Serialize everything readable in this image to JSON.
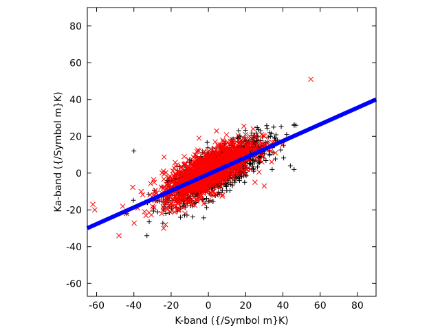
{
  "chart_data": {
    "type": "scatter",
    "title": "",
    "xlabel": "K-band ({/Symbol m}K)",
    "ylabel": "Ka-band ({/Symbol m}K)",
    "xlim": [
      -65,
      90
    ],
    "ylim": [
      -67,
      90
    ],
    "xticks": [
      -60,
      -40,
      -20,
      0,
      20,
      40,
      60,
      80
    ],
    "yticks": [
      -60,
      -40,
      -20,
      0,
      20,
      40,
      60,
      80
    ],
    "grid": false,
    "legend": "none",
    "series": [
      {
        "marker": "plus",
        "color": "#000000",
        "cloud": {
          "count": 1300,
          "x_mean": 5,
          "x_sd": 13,
          "slope": 0.5,
          "intercept": -1,
          "y_sd": 5.5
        },
        "points": [
          [
            -40,
            12
          ],
          [
            -33,
            -34
          ],
          [
            -15,
            -24
          ],
          [
            35,
            25
          ],
          [
            37,
            18
          ],
          [
            42,
            21
          ],
          [
            44,
            4
          ],
          [
            46,
            2
          ],
          [
            46,
            26
          ],
          [
            47,
            26
          ],
          [
            28,
            23
          ],
          [
            33,
            22
          ]
        ]
      },
      {
        "marker": "cross",
        "color": "#ff0000",
        "cloud": {
          "count": 1500,
          "x_mean": 0,
          "x_sd": 12,
          "slope": 0.5,
          "intercept": 1,
          "y_sd": 5.5
        },
        "points": [
          [
            -62,
            -17
          ],
          [
            -61,
            -20
          ],
          [
            -48,
            -34
          ],
          [
            -46,
            -18
          ],
          [
            -44,
            -22
          ],
          [
            -38,
            -19
          ],
          [
            -30,
            -18
          ],
          [
            -25,
            -22
          ],
          [
            -23,
            -28
          ],
          [
            -24,
            -30
          ],
          [
            55,
            51
          ],
          [
            30,
            -7
          ],
          [
            25,
            -5
          ],
          [
            36,
            11
          ],
          [
            -5,
            19
          ],
          [
            -13,
            9
          ]
        ]
      },
      {
        "marker": "line",
        "color": "#0000ff",
        "slope": 0.4516,
        "intercept": -0.6,
        "x_range": [
          -65,
          90
        ]
      }
    ]
  }
}
